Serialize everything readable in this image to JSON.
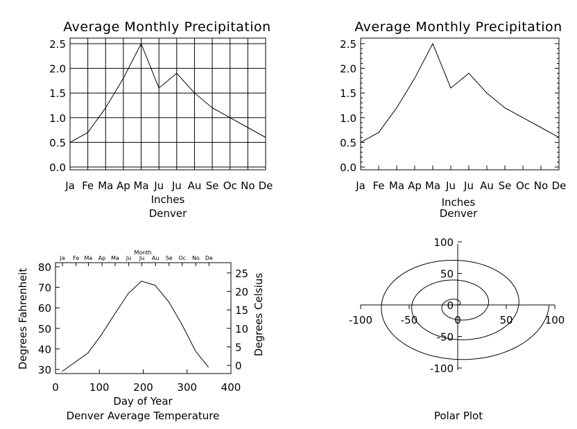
{
  "chart_data": [
    {
      "type": "line",
      "title": "Average Monthly Precipitation",
      "xlabel": "Inches",
      "subtitle": "Denver",
      "categories": [
        "Ja",
        "Fe",
        "Ma",
        "Ap",
        "Ma",
        "Ju",
        "Ju",
        "Au",
        "Se",
        "Oc",
        "No",
        "De"
      ],
      "values": [
        0.5,
        0.7,
        1.2,
        1.8,
        2.5,
        1.6,
        1.9,
        1.5,
        1.2,
        1.0,
        0.8,
        0.6
      ],
      "ylim": [
        0,
        2.5
      ],
      "yticks": [
        "0.0",
        "0.5",
        "1.0",
        "1.5",
        "2.0",
        "2.5"
      ],
      "grid": true
    },
    {
      "type": "line",
      "title": "Average Monthly Precipitation",
      "xlabel": "Inches",
      "subtitle": "Denver",
      "categories": [
        "Ja",
        "Fe",
        "Ma",
        "Ap",
        "Ma",
        "Ju",
        "Ju",
        "Au",
        "Se",
        "Oc",
        "No",
        "De"
      ],
      "values": [
        0.5,
        0.7,
        1.2,
        1.8,
        2.5,
        1.6,
        1.9,
        1.5,
        1.2,
        1.0,
        0.8,
        0.6
      ],
      "ylim": [
        0,
        2.5
      ],
      "yticks": [
        "0.0",
        "0.5",
        "1.0",
        "1.5",
        "2.0",
        "2.5"
      ],
      "grid": false
    },
    {
      "type": "line",
      "title": "Denver Average Temperature",
      "xlabel": "Day of Year",
      "ylabel": "Degrees Fahrenheit",
      "y2label": "Degrees Celsius",
      "top_axis_label": "Month",
      "top_months": [
        "Ja",
        "Fe",
        "Ma",
        "Ap",
        "Ma",
        "Ju",
        "Ju",
        "Au",
        "Se",
        "Oc",
        "No",
        "De"
      ],
      "x": [
        15,
        74,
        105,
        135,
        166,
        196,
        227,
        258,
        288,
        319,
        349
      ],
      "y": [
        29,
        38,
        47,
        57,
        67,
        73,
        71,
        63,
        52,
        39,
        31
      ],
      "xlim": [
        0,
        400
      ],
      "ylim": [
        28,
        82
      ],
      "xticks": [
        "0",
        "100",
        "200",
        "300",
        "400"
      ],
      "yticks": [
        "30",
        "40",
        "50",
        "60",
        "70",
        "80"
      ],
      "y2ticks": [
        "0",
        "5",
        "10",
        "15",
        "20",
        "25"
      ]
    },
    {
      "type": "line",
      "title": "Polar Plot",
      "description": "Archimedean spiral r = 5·theta (radians), theta 0..6π",
      "spiral_r_per_radian": 5,
      "theta_max_turns": 3,
      "xlim": [
        -100,
        100
      ],
      "ylim": [
        -100,
        100
      ],
      "xticks": [
        "-100",
        "-50",
        "0",
        "50",
        "100"
      ],
      "yticks": [
        "-100",
        "-50",
        "0",
        "50",
        "100"
      ]
    }
  ]
}
